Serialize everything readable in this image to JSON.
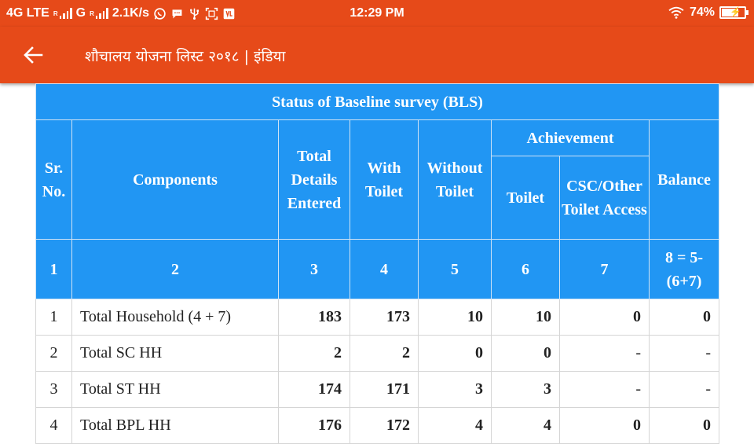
{
  "status_bar": {
    "network": "4G LTE",
    "network2": "G",
    "roaming": "R",
    "speed": "2.1K/s",
    "time": "12:29 PM",
    "battery": "74%",
    "battery_level": 0.74,
    "icons": [
      "signal-icon",
      "whatsapp-icon",
      "chat-icon",
      "usb-icon",
      "screenshot-icon",
      "volte-icon",
      "wifi-icon",
      "battery-icon"
    ]
  },
  "app_bar": {
    "title": "शौचालय योजना लिस्ट २०१८ | इंडिया",
    "back_icon": "back-arrow-icon",
    "color": "#e64a19"
  },
  "table": {
    "title": "Status of Baseline survey (BLS)",
    "header_color": "#2196f3",
    "headers": {
      "sr_no": "Sr. No.",
      "components": "Components",
      "total": "Total Details Entered",
      "with_toilet": "With Toilet",
      "without_toilet": "Without Toilet",
      "achievement": "Achievement",
      "toilet": "Toilet",
      "csc": "CSC/Other Toilet Access",
      "balance": "Balance"
    },
    "column_numbers": [
      "1",
      "2",
      "3",
      "4",
      "5",
      "6",
      "7",
      "8 = 5-(6+7)"
    ],
    "rows": [
      {
        "sr": "1",
        "component": "Total Household (4 + 7)",
        "total": "183",
        "with": "173",
        "without": "10",
        "toilet": "10",
        "csc": "0",
        "balance": "0"
      },
      {
        "sr": "2",
        "component": "Total SC HH",
        "total": "2",
        "with": "2",
        "without": "0",
        "toilet": "0",
        "csc": "-",
        "balance": "-"
      },
      {
        "sr": "3",
        "component": "Total ST HH",
        "total": "174",
        "with": "171",
        "without": "3",
        "toilet": "3",
        "csc": "-",
        "balance": "-"
      },
      {
        "sr": "4",
        "component": "Total BPL HH",
        "total": "176",
        "with": "172",
        "without": "4",
        "toilet": "4",
        "csc": "0",
        "balance": "0"
      }
    ]
  }
}
